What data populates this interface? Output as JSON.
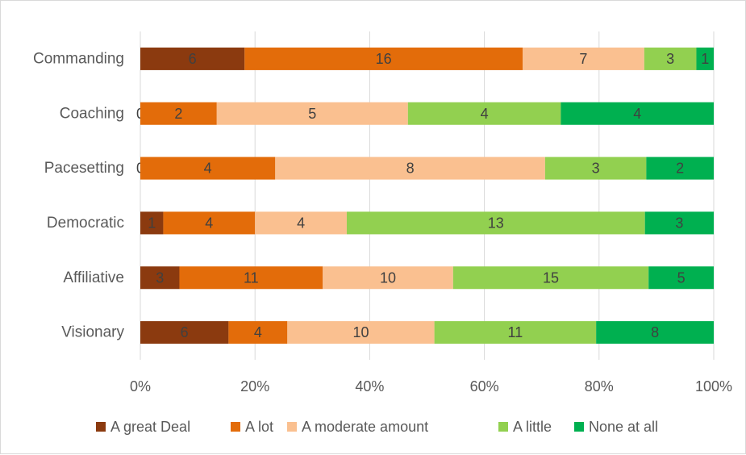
{
  "chart_data": {
    "type": "bar",
    "orientation": "horizontal",
    "stacking": "percent",
    "categories": [
      "Commanding",
      "Coaching",
      "Pacesetting",
      "Democratic",
      "Affiliative",
      "Visionary"
    ],
    "series": [
      {
        "name": "A great Deal",
        "color": "#8B3A0F",
        "values": [
          6,
          0,
          0,
          1,
          3,
          6
        ]
      },
      {
        "name": "A lot",
        "color": "#E36C0A",
        "values": [
          16,
          2,
          4,
          4,
          11,
          4
        ]
      },
      {
        "name": "A moderate amount",
        "color": "#FAC090",
        "values": [
          7,
          5,
          8,
          4,
          10,
          10
        ]
      },
      {
        "name": "A little",
        "color": "#92D050",
        "values": [
          3,
          4,
          3,
          13,
          15,
          11
        ]
      },
      {
        "name": "None at all",
        "color": "#00B050",
        "values": [
          1,
          4,
          2,
          3,
          5,
          8
        ]
      }
    ],
    "x_ticks": [
      "0%",
      "20%",
      "40%",
      "60%",
      "80%",
      "100%"
    ],
    "xlim": [
      0,
      100
    ],
    "gridlines": "vertical",
    "legend_position": "bottom",
    "title": "",
    "xlabel": "",
    "ylabel": ""
  }
}
